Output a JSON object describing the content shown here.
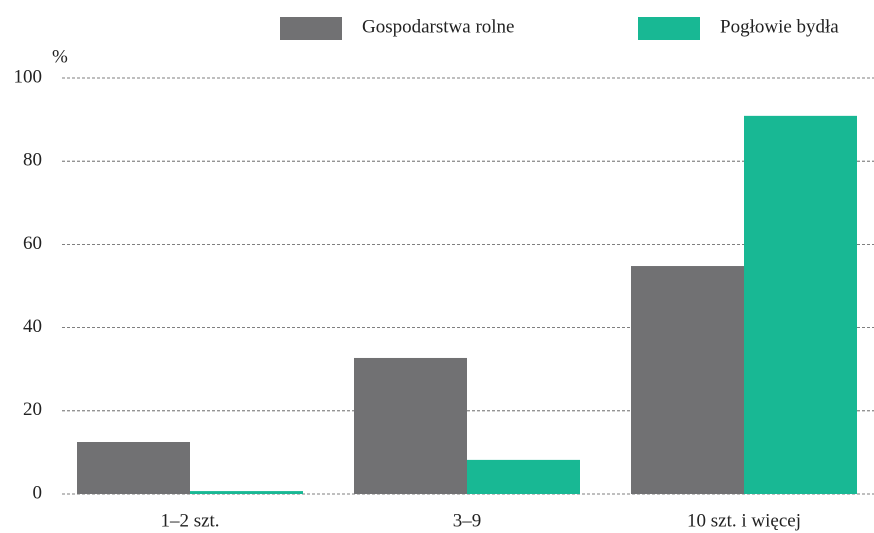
{
  "chart_data": {
    "type": "bar",
    "y_unit": "%",
    "categories": [
      "1–2 szt.",
      "3–9",
      "10 szt. i więcej"
    ],
    "series": [
      {
        "name": "Gospodarstwa rolne",
        "color": "#717173",
        "values": [
          12.5,
          32.7,
          54.8
        ]
      },
      {
        "name": "Pogłowie bydła",
        "color": "#18b894",
        "values": [
          0.7,
          8.2,
          90.9
        ]
      }
    ],
    "ylim": [
      0,
      100
    ],
    "yticks": [
      0,
      20,
      40,
      60,
      80,
      100
    ],
    "grid": true,
    "legend": "top"
  }
}
